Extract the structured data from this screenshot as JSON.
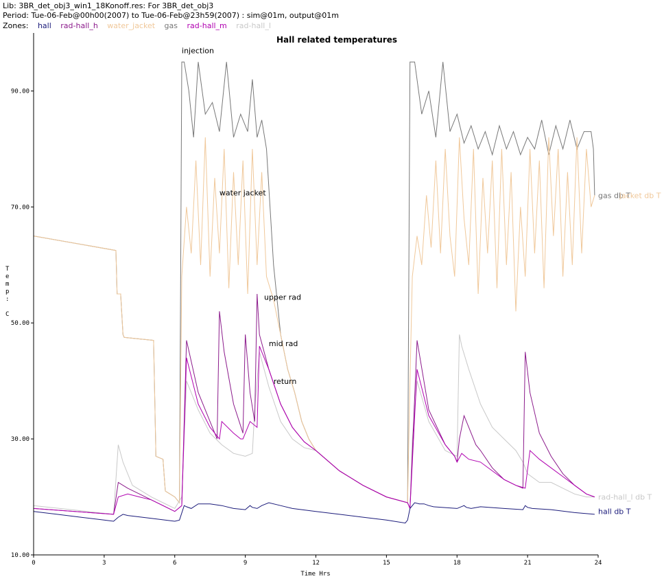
{
  "header": {
    "lib_line": "Lib: 3BR_det_obj3_win1_18Konoff.res: For 3BR_det_obj3",
    "period_line": "Period: Tue-06-Feb@00h00(2007) to Tue-06-Feb@23h59(2007) : sim@01m, output@01m",
    "zones_label": "Zones:",
    "zones": [
      {
        "name": "hall",
        "color": "#1a1a7a"
      },
      {
        "name": "rad-hall_h",
        "color": "#8b1a8b"
      },
      {
        "name": "water_jacket",
        "color": "#f0c89a"
      },
      {
        "name": "gas",
        "color": "#777777"
      },
      {
        "name": "rad-hall_m",
        "color": "#b000b0"
      },
      {
        "name": "rad-hall_l",
        "color": "#c8c8c8"
      }
    ]
  },
  "chart_data": {
    "type": "line",
    "title": "Hall related temperatures",
    "xlabel": "Time Hrs",
    "ylabel": "Temp: C",
    "xlim": [
      0,
      24
    ],
    "ylim": [
      10,
      100
    ],
    "xticks": [
      "0",
      "3",
      "6",
      "9",
      "12",
      "15",
      "18",
      "21",
      "24"
    ],
    "yticks": [
      "10.00",
      "30.00",
      "50.00",
      "70.00",
      "90.00"
    ],
    "grid": false,
    "annotations": [
      {
        "text": "injection",
        "x": 6.3,
        "y": 96.5
      },
      {
        "text": "water jacket",
        "x": 7.9,
        "y": 72
      },
      {
        "text": "upper rad",
        "x": 9.8,
        "y": 54
      },
      {
        "text": "mid rad",
        "x": 10.0,
        "y": 46
      },
      {
        "text": "return",
        "x": 10.2,
        "y": 39.5
      }
    ],
    "end_labels": [
      {
        "text": "gas db T",
        "x": 24.0,
        "y": 72.0,
        "color": "#777777"
      },
      {
        "text": "jacket db T",
        "x": 24.9,
        "y": 72.0,
        "color": "#f0c89a"
      },
      {
        "text": "rad-hall_l db T",
        "x": 24.0,
        "y": 20.0,
        "color": "#c8c8c8"
      },
      {
        "text": "hall db T",
        "x": 24.0,
        "y": 17.5,
        "color": "#1a1a7a"
      }
    ],
    "series": [
      {
        "color": "#777777",
        "x": [
          0,
          3.5,
          3.55,
          3.7,
          3.8,
          3.85,
          5.1,
          5.2,
          5.5,
          5.6,
          6.0,
          6.2,
          6.3,
          6.4,
          6.6,
          6.8,
          7.0,
          7.3,
          7.6,
          7.9,
          8.2,
          8.5,
          8.8,
          9.1,
          9.3,
          9.5,
          9.7,
          9.9,
          10.2,
          10.5,
          10.8,
          11.1,
          11.4,
          11.7,
          12.0,
          13.0,
          14.0,
          15.0,
          15.9,
          16.0,
          16.2,
          16.5,
          16.8,
          17.1,
          17.4,
          17.7,
          18.0,
          18.3,
          18.6,
          18.9,
          19.2,
          19.5,
          19.8,
          20.1,
          20.4,
          20.7,
          21.0,
          21.3,
          21.6,
          21.9,
          22.2,
          22.5,
          22.8,
          23.1,
          23.4,
          23.7,
          23.8,
          23.85
        ],
        "values": [
          65,
          62.5,
          55,
          55,
          48,
          47.5,
          47,
          27,
          26.5,
          21,
          20,
          19,
          95,
          95,
          90,
          82,
          95,
          86,
          88,
          83,
          95,
          82,
          86,
          83,
          92,
          82,
          85,
          80,
          60,
          48,
          42,
          38,
          33,
          30,
          28,
          24.5,
          22,
          20,
          19,
          95,
          95,
          86,
          90,
          82,
          95,
          83,
          86,
          81,
          84,
          80,
          83,
          79,
          84,
          80,
          83,
          79,
          82,
          80,
          85,
          79,
          84,
          80,
          85,
          80,
          83,
          83,
          80,
          72
        ]
      },
      {
        "color": "#f0c89a",
        "x": [
          0,
          3.5,
          3.55,
          3.7,
          3.8,
          3.85,
          5.1,
          5.2,
          5.5,
          5.6,
          6.0,
          6.2,
          6.3,
          6.5,
          6.7,
          6.9,
          7.1,
          7.3,
          7.5,
          7.7,
          7.9,
          8.1,
          8.3,
          8.5,
          8.7,
          8.9,
          9.1,
          9.3,
          9.5,
          9.7,
          9.9,
          10.2,
          10.5,
          10.8,
          11.1,
          11.4,
          11.7,
          12.0,
          13.0,
          14.0,
          15.0,
          15.9,
          16.0,
          16.1,
          16.3,
          16.5,
          16.7,
          16.9,
          17.1,
          17.3,
          17.5,
          17.7,
          17.9,
          18.1,
          18.3,
          18.5,
          18.7,
          18.9,
          19.1,
          19.3,
          19.5,
          19.7,
          19.9,
          20.1,
          20.3,
          20.5,
          20.7,
          20.9,
          21.1,
          21.3,
          21.5,
          21.7,
          21.9,
          22.1,
          22.3,
          22.5,
          22.7,
          22.9,
          23.1,
          23.3,
          23.5,
          23.7,
          23.85
        ],
        "values": [
          65,
          62.5,
          55,
          55,
          48,
          47.5,
          47,
          27,
          26.5,
          21,
          20,
          19,
          58,
          70,
          62,
          78,
          60,
          82,
          58,
          75,
          62,
          80,
          56,
          76,
          60,
          78,
          55,
          80,
          60,
          76,
          58,
          54,
          48,
          42,
          38,
          33,
          30,
          28,
          24.5,
          22,
          20,
          19,
          40,
          58,
          65,
          60,
          72,
          63,
          78,
          62,
          80,
          65,
          58,
          82,
          68,
          60,
          80,
          55,
          75,
          62,
          78,
          56,
          80,
          60,
          76,
          52,
          70,
          58,
          80,
          62,
          78,
          56,
          82,
          65,
          80,
          58,
          76,
          60,
          82,
          62,
          80,
          70,
          72
        ]
      },
      {
        "color": "#c8c8c8",
        "x": [
          0,
          3.4,
          3.5,
          3.6,
          3.8,
          4.2,
          5.0,
          5.5,
          6.0,
          6.3,
          6.4,
          6.5,
          7.0,
          7.5,
          8.0,
          8.5,
          9.0,
          9.3,
          9.4,
          9.6,
          10.0,
          10.5,
          11.0,
          11.5,
          12.0,
          13.0,
          14.0,
          15.0,
          15.9,
          16.0,
          16.1,
          16.3,
          16.8,
          17.5,
          18.0,
          18.1,
          18.2,
          18.5,
          19.0,
          19.5,
          20.0,
          20.5,
          20.8,
          21.0,
          21.5,
          22.0,
          22.5,
          23.0,
          23.5,
          23.85
        ],
        "values": [
          18.5,
          17,
          23,
          29,
          26,
          22,
          20,
          19,
          18,
          20,
          30,
          40,
          35,
          31,
          29,
          27.5,
          27,
          27.5,
          35,
          45,
          39,
          33,
          30,
          28.5,
          28,
          24.5,
          22,
          20,
          19,
          18,
          30,
          40,
          33,
          28,
          27,
          48,
          46,
          42,
          36,
          32,
          30,
          28,
          26,
          24,
          22.5,
          22.5,
          21.5,
          20.5,
          20,
          20
        ]
      },
      {
        "color": "#8b1a8b",
        "x": [
          0,
          3.4,
          3.6,
          4.0,
          4.5,
          5.0,
          5.5,
          6.0,
          6.3,
          6.5,
          7.0,
          7.5,
          7.8,
          7.9,
          8.1,
          8.5,
          8.9,
          9.0,
          9.2,
          9.4,
          9.5,
          9.6,
          10.0,
          10.5,
          11.0,
          11.5,
          12.0,
          13.0,
          14.0,
          15.0,
          15.9,
          16.0,
          16.3,
          16.8,
          17.5,
          17.9,
          18.0,
          18.1,
          18.3,
          18.5,
          18.8,
          19.0,
          19.5,
          20.0,
          20.5,
          20.8,
          20.9,
          21.1,
          21.5,
          22.0,
          22.5,
          23.0,
          23.5,
          23.85
        ],
        "values": [
          18,
          17,
          22.5,
          21.5,
          20.5,
          19.5,
          18.5,
          17.5,
          18.5,
          47,
          38,
          33,
          30,
          52,
          45,
          36,
          31,
          48,
          38,
          33,
          55,
          48,
          42,
          36,
          32,
          29.5,
          28,
          24.5,
          22,
          20,
          19,
          18,
          47,
          35,
          29,
          27,
          26,
          30,
          34,
          32,
          29,
          28,
          25,
          23,
          22,
          21.5,
          45,
          38,
          31,
          27,
          24,
          22,
          20.5,
          20
        ]
      },
      {
        "color": "#b000b0",
        "x": [
          0,
          3.4,
          3.6,
          4.0,
          4.5,
          5.0,
          5.5,
          6.0,
          6.3,
          6.5,
          7.0,
          7.5,
          7.9,
          8.0,
          8.5,
          8.8,
          8.9,
          9.2,
          9.5,
          9.6,
          10.0,
          10.5,
          11.0,
          11.5,
          12.0,
          13.0,
          14.0,
          15.0,
          15.9,
          16.0,
          16.3,
          16.8,
          17.5,
          17.9,
          18.0,
          18.2,
          18.5,
          19.0,
          19.5,
          20.0,
          20.5,
          20.9,
          21.1,
          21.5,
          22.0,
          22.5,
          23.0,
          23.5,
          23.85
        ],
        "values": [
          18,
          17,
          20,
          20.5,
          20,
          19.5,
          18.5,
          17.5,
          18.5,
          44,
          36,
          32,
          30,
          33,
          31,
          30,
          30,
          33,
          32,
          46,
          42,
          36,
          32,
          29.5,
          28,
          24.5,
          22,
          20,
          19,
          18,
          42,
          34,
          29,
          27,
          26,
          27.5,
          26.5,
          26,
          24.5,
          23,
          22,
          21.5,
          28,
          26.5,
          25,
          23.5,
          22,
          20.5,
          20
        ]
      },
      {
        "color": "#1a1a7a",
        "x": [
          0,
          1.0,
          2.0,
          3.0,
          3.4,
          3.6,
          3.8,
          4.0,
          5.0,
          6.0,
          6.2,
          6.4,
          6.5,
          6.7,
          7.0,
          7.5,
          8.0,
          8.5,
          9.0,
          9.2,
          9.3,
          9.5,
          9.7,
          10.0,
          10.5,
          11.0,
          12.0,
          13.0,
          14.0,
          15.0,
          15.8,
          15.9,
          16.0,
          16.2,
          16.4,
          16.6,
          16.8,
          17.0,
          18.0,
          18.3,
          18.4,
          18.6,
          19.0,
          20.0,
          20.8,
          20.9,
          21.0,
          21.2,
          22.0,
          23.0,
          23.85
        ],
        "values": [
          17.5,
          17,
          16.5,
          16,
          15.8,
          16.5,
          17,
          16.8,
          16.3,
          15.8,
          16,
          18.5,
          18.3,
          18,
          18.8,
          18.8,
          18.5,
          18,
          17.8,
          18.5,
          18.2,
          18,
          18.5,
          19,
          18.5,
          18,
          17.5,
          17,
          16.5,
          16,
          15.5,
          16,
          18,
          19,
          18.8,
          18.8,
          18.5,
          18.3,
          18,
          18.5,
          18.2,
          18,
          18.3,
          18,
          17.8,
          18.5,
          18.2,
          18,
          17.8,
          17.3,
          17
        ]
      }
    ]
  }
}
